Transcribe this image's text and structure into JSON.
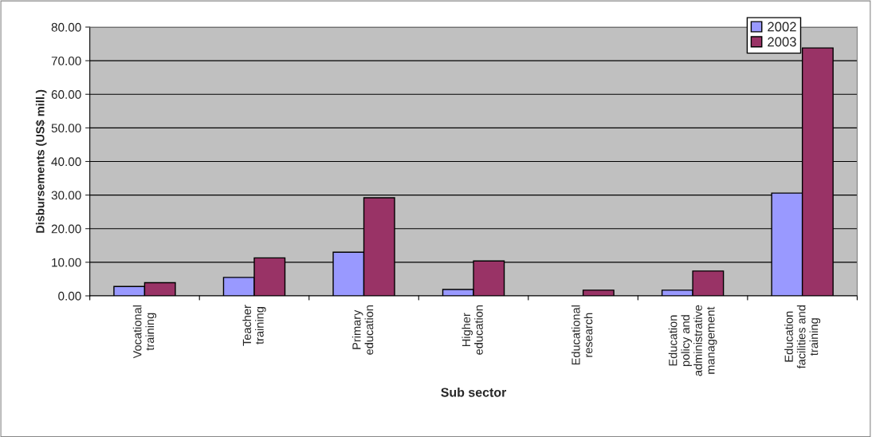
{
  "chart_data": {
    "type": "bar",
    "xlabel": "Sub sector",
    "ylabel": "Disbursements (US$ mill.)",
    "categories": [
      "Vocational\ntraining",
      "Teacher\ntraining",
      "Primary\neducation",
      "Higher\neducation",
      "Educational\nresearch",
      "Education\npolicy and\nadministrative\nmanagement",
      "Education\nfacilities and\ntraining"
    ],
    "series": [
      {
        "name": "2002",
        "color": "#9999ff",
        "values": [
          2.8,
          5.5,
          13.0,
          1.9,
          null,
          1.7,
          30.6
        ]
      },
      {
        "name": "2003",
        "color": "#993366",
        "values": [
          3.9,
          11.3,
          29.2,
          10.4,
          1.7,
          7.4,
          73.8
        ]
      }
    ],
    "ylim": [
      0,
      80
    ],
    "yticks": [
      {
        "value": 0,
        "label": "0.00"
      },
      {
        "value": 10,
        "label": "10.00"
      },
      {
        "value": 20,
        "label": "20.00"
      },
      {
        "value": 30,
        "label": "30.00"
      },
      {
        "value": 40,
        "label": "40.00"
      },
      {
        "value": 50,
        "label": "50.00"
      },
      {
        "value": 60,
        "label": "60.00"
      },
      {
        "value": 70,
        "label": "70.00"
      },
      {
        "value": 80,
        "label": "80.00"
      }
    ],
    "grid": "y",
    "legend": "top right"
  }
}
